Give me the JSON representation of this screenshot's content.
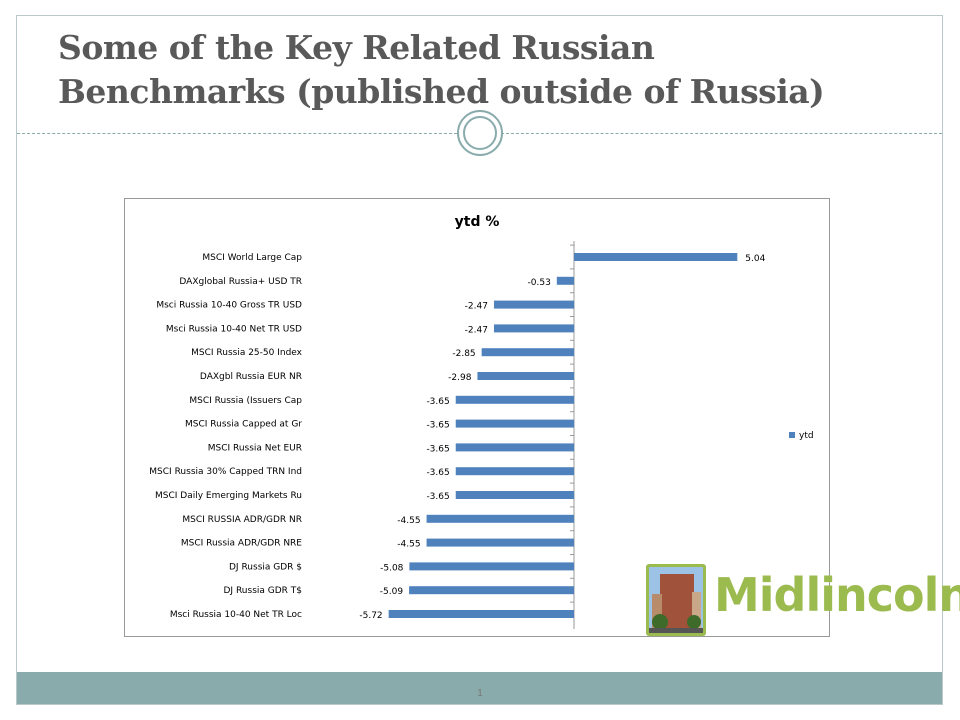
{
  "slide": {
    "title_line1": "Some of the Key Related Russian",
    "title_line2": "Benchmarks (published outside of Russia)",
    "page_number": "1"
  },
  "logo": {
    "text": "Midlincoln"
  },
  "colors": {
    "bar": "#4f81bd",
    "accent": "#8aabab",
    "logo": "#9bbb4f"
  },
  "chart_data": {
    "type": "bar",
    "orientation": "horizontal",
    "title": "ytd %",
    "legend": [
      "ytd"
    ],
    "legend_position": "right",
    "categories": [
      "MSCI World Large Cap",
      "DAXglobal Russia+ USD TR",
      "Msci Russia 10-40 Gross TR USD",
      "Msci Russia 10-40 Net TR USD",
      "MSCI Russia 25-50 Index",
      "DAXgbl Russia EUR NR",
      "MSCI Russia (Issuers Cap",
      "MSCI Russia Capped at Gr",
      "MSCI Russia Net EUR",
      "MSCI Russia 30% Capped TRN Ind",
      "MSCI Daily Emerging Markets Ru",
      "MSCI RUSSIA ADR/GDR NR",
      "MSCI Russia ADR/GDR NRE",
      "DJ Russia GDR $",
      "DJ Russia GDR T$",
      "Msci Russia 10-40 Net TR Loc"
    ],
    "values": [
      5.04,
      -0.53,
      -2.47,
      -2.47,
      -2.85,
      -2.98,
      -3.65,
      -3.65,
      -3.65,
      -3.65,
      -3.65,
      -4.55,
      -4.55,
      -5.08,
      -5.09,
      -5.72
    ],
    "labels": [
      "5.04",
      "-0.53",
      "-2.47",
      "-2.47",
      "-2.85",
      "-2.98",
      "-3.65",
      "-3.65",
      "-3.65",
      "-3.65",
      "-3.65",
      "-4.55",
      "-4.55",
      "-5.08",
      "-5.09",
      "-5.72"
    ]
  }
}
